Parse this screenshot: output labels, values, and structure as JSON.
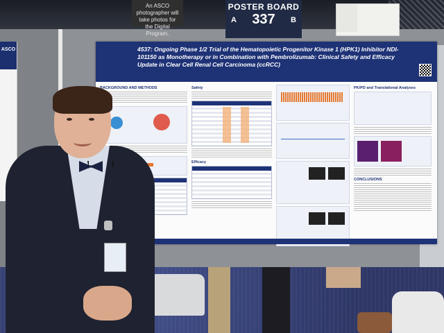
{
  "signs": {
    "asco_notice": "An ASCO photographer will take photos for the Digital Program.",
    "board_title": "POSTER BOARD",
    "board_side_left": "A",
    "board_number": "337",
    "board_side_right": "B",
    "left_side_logo": "ASCO"
  },
  "poster": {
    "title": "4537: Ongoing Phase 1/2 Trial of the Hematopoietic Progenitor Kinase 1 (HPK1) Inhibitor NDI-101150 as Monotherapy or in Combination with Pembrolizumab: Clinical Safety and Efficacy Update in Clear Cell Renal Cell Carcinoma (ccRCC)",
    "sections": {
      "background": "BACKGROUND AND METHODS",
      "safety": "Safety",
      "efficacy": "Efficacy",
      "pkpd": "PK/PD and Translational Analyses",
      "conclusions": "CONCLUSIONS"
    }
  },
  "colors": {
    "poster_header": "#1e3276",
    "accent_orange": "#e6782f",
    "wall": "#8e9196",
    "carpet": "#2e3766",
    "suit": "#1f2230"
  }
}
